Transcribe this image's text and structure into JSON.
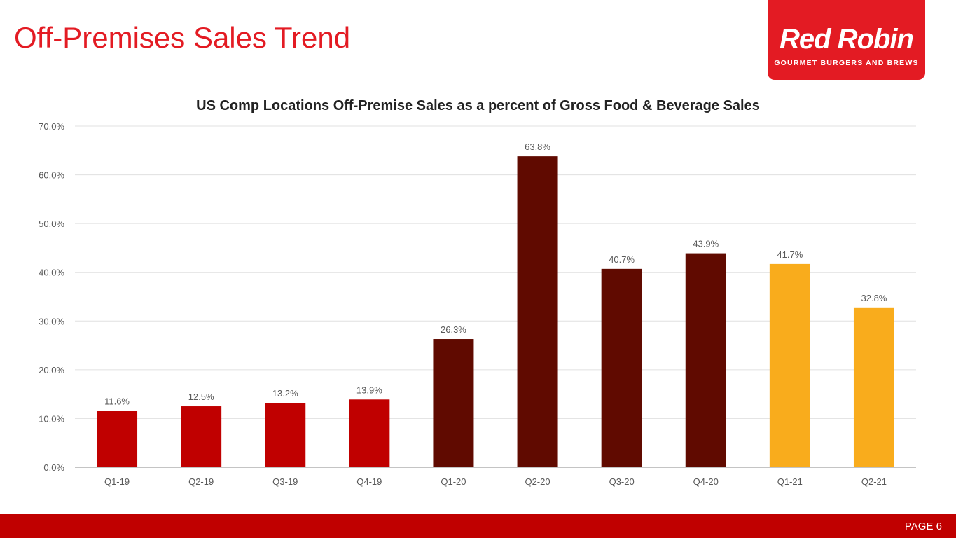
{
  "header": {
    "title": "Off-Premises Sales Trend"
  },
  "logo": {
    "brand": "Red Robin",
    "tagline": "GOURMET BURGERS AND BREWS",
    "color": "#e31b23"
  },
  "footer": {
    "page": "PAGE 6",
    "color": "#c00000"
  },
  "chart_data": {
    "type": "bar",
    "title": "US Comp Locations Off-Premise Sales as a percent of Gross Food & Beverage Sales",
    "xlabel": "",
    "ylabel": "",
    "ylim": [
      0,
      70
    ],
    "yticks": [
      "0.0%",
      "10.0%",
      "20.0%",
      "30.0%",
      "40.0%",
      "50.0%",
      "60.0%",
      "70.0%"
    ],
    "grid": true,
    "categories": [
      "Q1-19",
      "Q2-19",
      "Q3-19",
      "Q4-19",
      "Q1-20",
      "Q2-20",
      "Q3-20",
      "Q4-20",
      "Q1-21",
      "Q2-21"
    ],
    "values": [
      11.6,
      12.5,
      13.2,
      13.9,
      26.3,
      63.8,
      40.7,
      43.9,
      41.7,
      32.8
    ],
    "labels": [
      "11.6%",
      "12.5%",
      "13.2%",
      "13.9%",
      "26.3%",
      "63.8%",
      "40.7%",
      "43.9%",
      "41.7%",
      "32.8%"
    ],
    "colors": [
      "#c00000",
      "#c00000",
      "#c00000",
      "#c00000",
      "#600a00",
      "#600a00",
      "#600a00",
      "#600a00",
      "#f9ac1c",
      "#f9ac1c"
    ]
  }
}
